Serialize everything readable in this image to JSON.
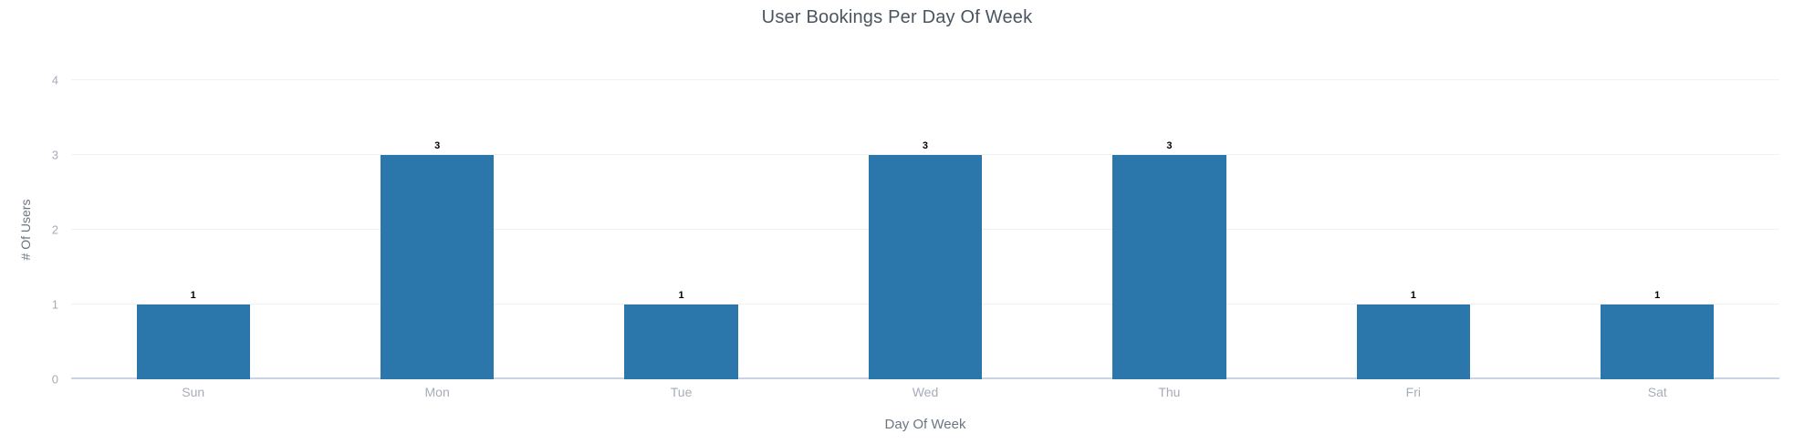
{
  "chart_data": {
    "type": "bar",
    "title": "User Bookings Per Day Of Week",
    "xlabel": "Day Of Week",
    "ylabel": "# Of Users",
    "categories": [
      "Sun",
      "Mon",
      "Tue",
      "Wed",
      "Thu",
      "Fri",
      "Sat"
    ],
    "values": [
      1,
      3,
      1,
      3,
      3,
      1,
      1
    ],
    "ylim": [
      0,
      4
    ],
    "yticks": [
      0,
      1,
      2,
      3,
      4
    ],
    "grid": true,
    "legend": false,
    "data_labels_shown": true,
    "colors": {
      "bar": "#2b76ab",
      "title_text": "#4a5560",
      "axis_title_text": "#6b7683",
      "tick_label_text": "#a6adb8",
      "gridline": "#f0f1f3",
      "baseline": "#c9d4e6",
      "data_label_text": "#000000",
      "background": "#ffffff"
    }
  }
}
